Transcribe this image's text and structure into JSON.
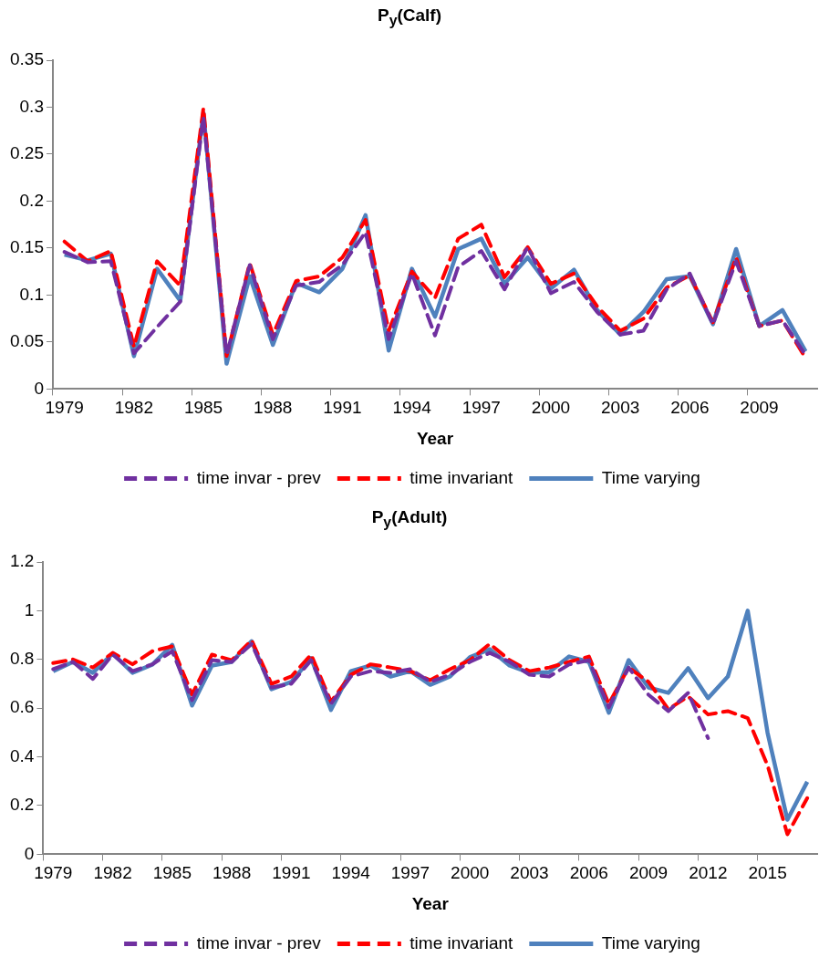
{
  "chart_data": [
    {
      "type": "line",
      "title": "P$_{y}$(Calf)",
      "xlabel": "Year",
      "categories": [
        "1979",
        null,
        null,
        "1982",
        null,
        null,
        "1985",
        null,
        null,
        "1988",
        null,
        null,
        "1991",
        null,
        null,
        "1994",
        null,
        null,
        "1997",
        null,
        null,
        "2000",
        null,
        null,
        "2003",
        null,
        null,
        "2006",
        null,
        null,
        "2009",
        null,
        null
      ],
      "ylim": [
        0,
        0.35
      ],
      "yticks": [
        0,
        0.05,
        0.1,
        0.15,
        0.2,
        0.25,
        0.3,
        0.35
      ],
      "grid": false,
      "legend": "bottom",
      "marker": "none",
      "series": [
        {
          "name": "time invar - prev",
          "color": "#7030a0",
          "line_style": "dashed",
          "values": [
            0.146,
            0.135,
            0.136,
            0.038,
            0.066,
            0.093,
            0.29,
            0.036,
            0.132,
            0.053,
            0.11,
            0.114,
            0.132,
            0.167,
            0.053,
            0.123,
            0.057,
            0.13,
            0.147,
            0.106,
            0.151,
            0.102,
            0.114,
            0.082,
            0.058,
            0.062,
            0.106,
            0.123,
            0.069,
            0.136,
            0.067,
            0.073,
            0.036
          ]
        },
        {
          "name": "time invariant",
          "color": "#ff0000",
          "line_style": "dashed",
          "values": [
            0.157,
            0.136,
            0.147,
            0.045,
            0.136,
            0.11,
            0.299,
            0.035,
            0.134,
            0.058,
            0.115,
            0.12,
            0.14,
            0.18,
            0.062,
            0.125,
            0.097,
            0.16,
            0.175,
            0.119,
            0.151,
            0.112,
            0.123,
            0.088,
            0.062,
            0.075,
            0.108,
            0.121,
            0.071,
            0.14,
            0.067,
            0.073,
            0.033
          ]
        },
        {
          "name": "Time varying",
          "color": "#4f81bd",
          "line_style": "solid",
          "values": [
            0.143,
            0.137,
            0.144,
            0.035,
            0.128,
            0.094,
            0.294,
            0.027,
            0.12,
            0.047,
            0.113,
            0.103,
            0.128,
            0.185,
            0.041,
            0.128,
            0.077,
            0.149,
            0.16,
            0.112,
            0.14,
            0.107,
            0.127,
            0.084,
            0.058,
            0.082,
            0.117,
            0.12,
            0.069,
            0.149,
            0.067,
            0.084,
            0.04
          ]
        }
      ]
    },
    {
      "type": "line",
      "title": "P$_{y}$(Adult)",
      "xlabel": "Year",
      "categories": [
        "1979",
        null,
        null,
        "1982",
        null,
        null,
        "1985",
        null,
        null,
        "1988",
        null,
        null,
        "1991",
        null,
        null,
        "1994",
        null,
        null,
        "1997",
        null,
        null,
        "2000",
        null,
        null,
        "2003",
        null,
        null,
        "2006",
        null,
        null,
        "2009",
        null,
        null,
        "2012",
        null,
        null,
        "2015",
        null,
        null
      ],
      "ylim": [
        0,
        1.2
      ],
      "yticks": [
        0,
        0.2,
        0.4,
        0.6,
        0.8,
        1,
        1.2
      ],
      "grid": false,
      "legend": "bottom",
      "marker": "none",
      "series": [
        {
          "name": "time invar - prev",
          "color": "#7030a0",
          "line_style": "dashed",
          "values": [
            0.76,
            0.79,
            0.72,
            0.82,
            0.752,
            0.78,
            0.834,
            0.633,
            0.797,
            0.79,
            0.864,
            0.685,
            0.7,
            0.797,
            0.618,
            0.73,
            0.752,
            0.745,
            0.76,
            0.708,
            0.737,
            0.79,
            0.827,
            0.79,
            0.737,
            0.73,
            0.779,
            0.797,
            0.603,
            0.767,
            0.655,
            0.588,
            0.663,
            0.477,
            null,
            null,
            null,
            null,
            null
          ]
        },
        {
          "name": "time invariant",
          "color": "#ff0000",
          "line_style": "dashed",
          "values": [
            0.785,
            0.8,
            0.767,
            0.827,
            0.78,
            0.834,
            0.854,
            0.656,
            0.82,
            0.797,
            0.879,
            0.7,
            0.73,
            0.82,
            0.626,
            0.737,
            0.78,
            0.767,
            0.752,
            0.715,
            0.76,
            0.797,
            0.864,
            0.797,
            0.752,
            0.767,
            0.79,
            0.812,
            0.618,
            0.767,
            0.708,
            0.596,
            0.648,
            0.574,
            0.588,
            0.559,
            0.365,
            0.082,
            0.231
          ]
        },
        {
          "name": "Time varying",
          "color": "#4f81bd",
          "line_style": "solid",
          "values": [
            0.752,
            0.79,
            0.745,
            0.824,
            0.745,
            0.779,
            0.86,
            0.611,
            0.775,
            0.79,
            0.875,
            0.678,
            0.708,
            0.805,
            0.593,
            0.752,
            0.775,
            0.73,
            0.752,
            0.696,
            0.73,
            0.809,
            0.842,
            0.775,
            0.745,
            0.748,
            0.812,
            0.79,
            0.581,
            0.797,
            0.685,
            0.663,
            0.764,
            0.641,
            0.73,
            1.0,
            0.499,
            0.142,
            0.298
          ]
        }
      ]
    }
  ]
}
